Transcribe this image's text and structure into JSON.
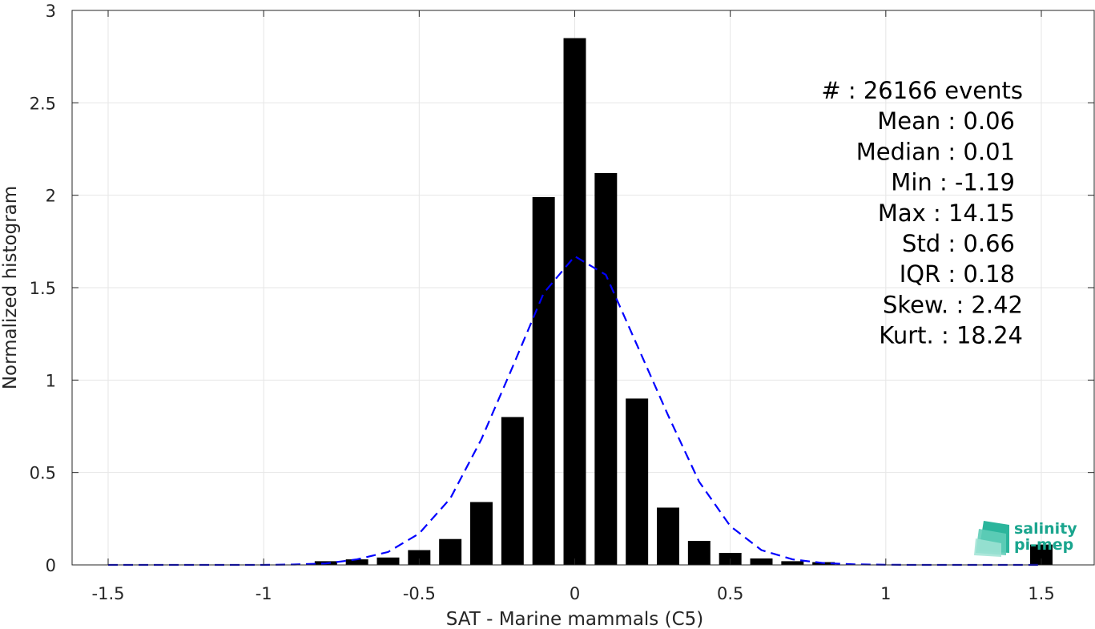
{
  "chart_data": {
    "type": "bar",
    "xlabel": "SAT - Marine mammals (C5)",
    "ylabel": "Normalized histogram",
    "xlim": [
      -1.5,
      1.5
    ],
    "ylim": [
      0,
      3
    ],
    "xticks": [
      "-1.5",
      "-1",
      "-0.5",
      "0",
      "0.5",
      "1",
      "1.5"
    ],
    "yticks": [
      "0",
      "0.5",
      "1",
      "1.5",
      "2",
      "2.5",
      "3"
    ],
    "grid": true,
    "bin_width": 0.1,
    "bins": {
      "centers": [
        -0.8,
        -0.7,
        -0.6,
        -0.5,
        -0.4,
        -0.3,
        -0.2,
        -0.1,
        0.0,
        0.1,
        0.2,
        0.3,
        0.4,
        0.5,
        0.6,
        0.7,
        0.8,
        1.5
      ],
      "values": [
        0.02,
        0.03,
        0.04,
        0.08,
        0.14,
        0.34,
        0.8,
        1.99,
        2.85,
        2.12,
        0.9,
        0.31,
        0.13,
        0.065,
        0.035,
        0.02,
        0.015,
        0.11
      ]
    },
    "fit_curve": {
      "style": "dashed",
      "color": "#0000ff",
      "x": [
        -1.5,
        -1.4,
        -1.3,
        -1.2,
        -1.1,
        -1.0,
        -0.9,
        -0.8,
        -0.7,
        -0.6,
        -0.5,
        -0.4,
        -0.3,
        -0.2,
        -0.1,
        0.0,
        0.1,
        0.2,
        0.3,
        0.4,
        0.5,
        0.6,
        0.7,
        0.8,
        0.9,
        1.0,
        1.1,
        1.2,
        1.3,
        1.4,
        1.5
      ],
      "y": [
        0,
        0,
        0,
        0,
        0,
        0,
        0.002,
        0.008,
        0.03,
        0.07,
        0.17,
        0.36,
        0.68,
        1.07,
        1.47,
        1.67,
        1.57,
        1.19,
        0.81,
        0.45,
        0.21,
        0.08,
        0.03,
        0.01,
        0.003,
        0.001,
        0,
        0,
        0,
        0,
        0
      ]
    },
    "bar_color": "#000000",
    "stats": [
      "#  : 26166 events",
      "Mean : 0.06",
      "Median : 0.01",
      "Min : -1.19",
      "Max : 14.15",
      "Std : 0.66",
      "IQR : 0.18",
      "Skew. : 2.42",
      "Kurt. : 18.24"
    ]
  },
  "logo": {
    "line1": "salinity",
    "line2": "pi-mep",
    "color": "#1aa58e"
  }
}
